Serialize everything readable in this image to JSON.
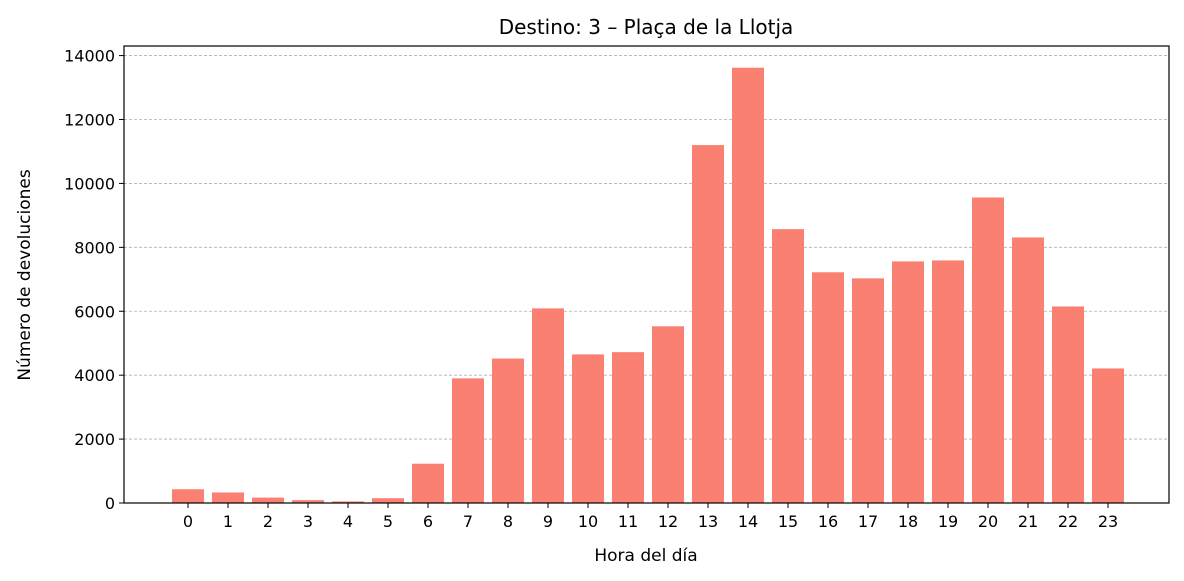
{
  "chart_data": {
    "type": "bar",
    "title": "Destino: 3 – Plaça de la Llotja",
    "xlabel": "Hora del día",
    "ylabel": "Número de devoluciones",
    "categories": [
      "0",
      "1",
      "2",
      "3",
      "4",
      "5",
      "6",
      "7",
      "8",
      "9",
      "10",
      "11",
      "12",
      "13",
      "14",
      "15",
      "16",
      "17",
      "18",
      "19",
      "20",
      "21",
      "22",
      "23"
    ],
    "values": [
      430,
      330,
      170,
      90,
      50,
      150,
      1230,
      3900,
      4520,
      6090,
      4650,
      4720,
      5530,
      11200,
      13620,
      8570,
      7220,
      7030,
      7560,
      7590,
      9560,
      8310,
      6150,
      4210
    ],
    "yticks": [
      0,
      2000,
      4000,
      6000,
      8000,
      10000,
      12000,
      14000
    ],
    "ylim": [
      0,
      14300
    ],
    "grid": "y",
    "bar_color": "#fa8072"
  }
}
